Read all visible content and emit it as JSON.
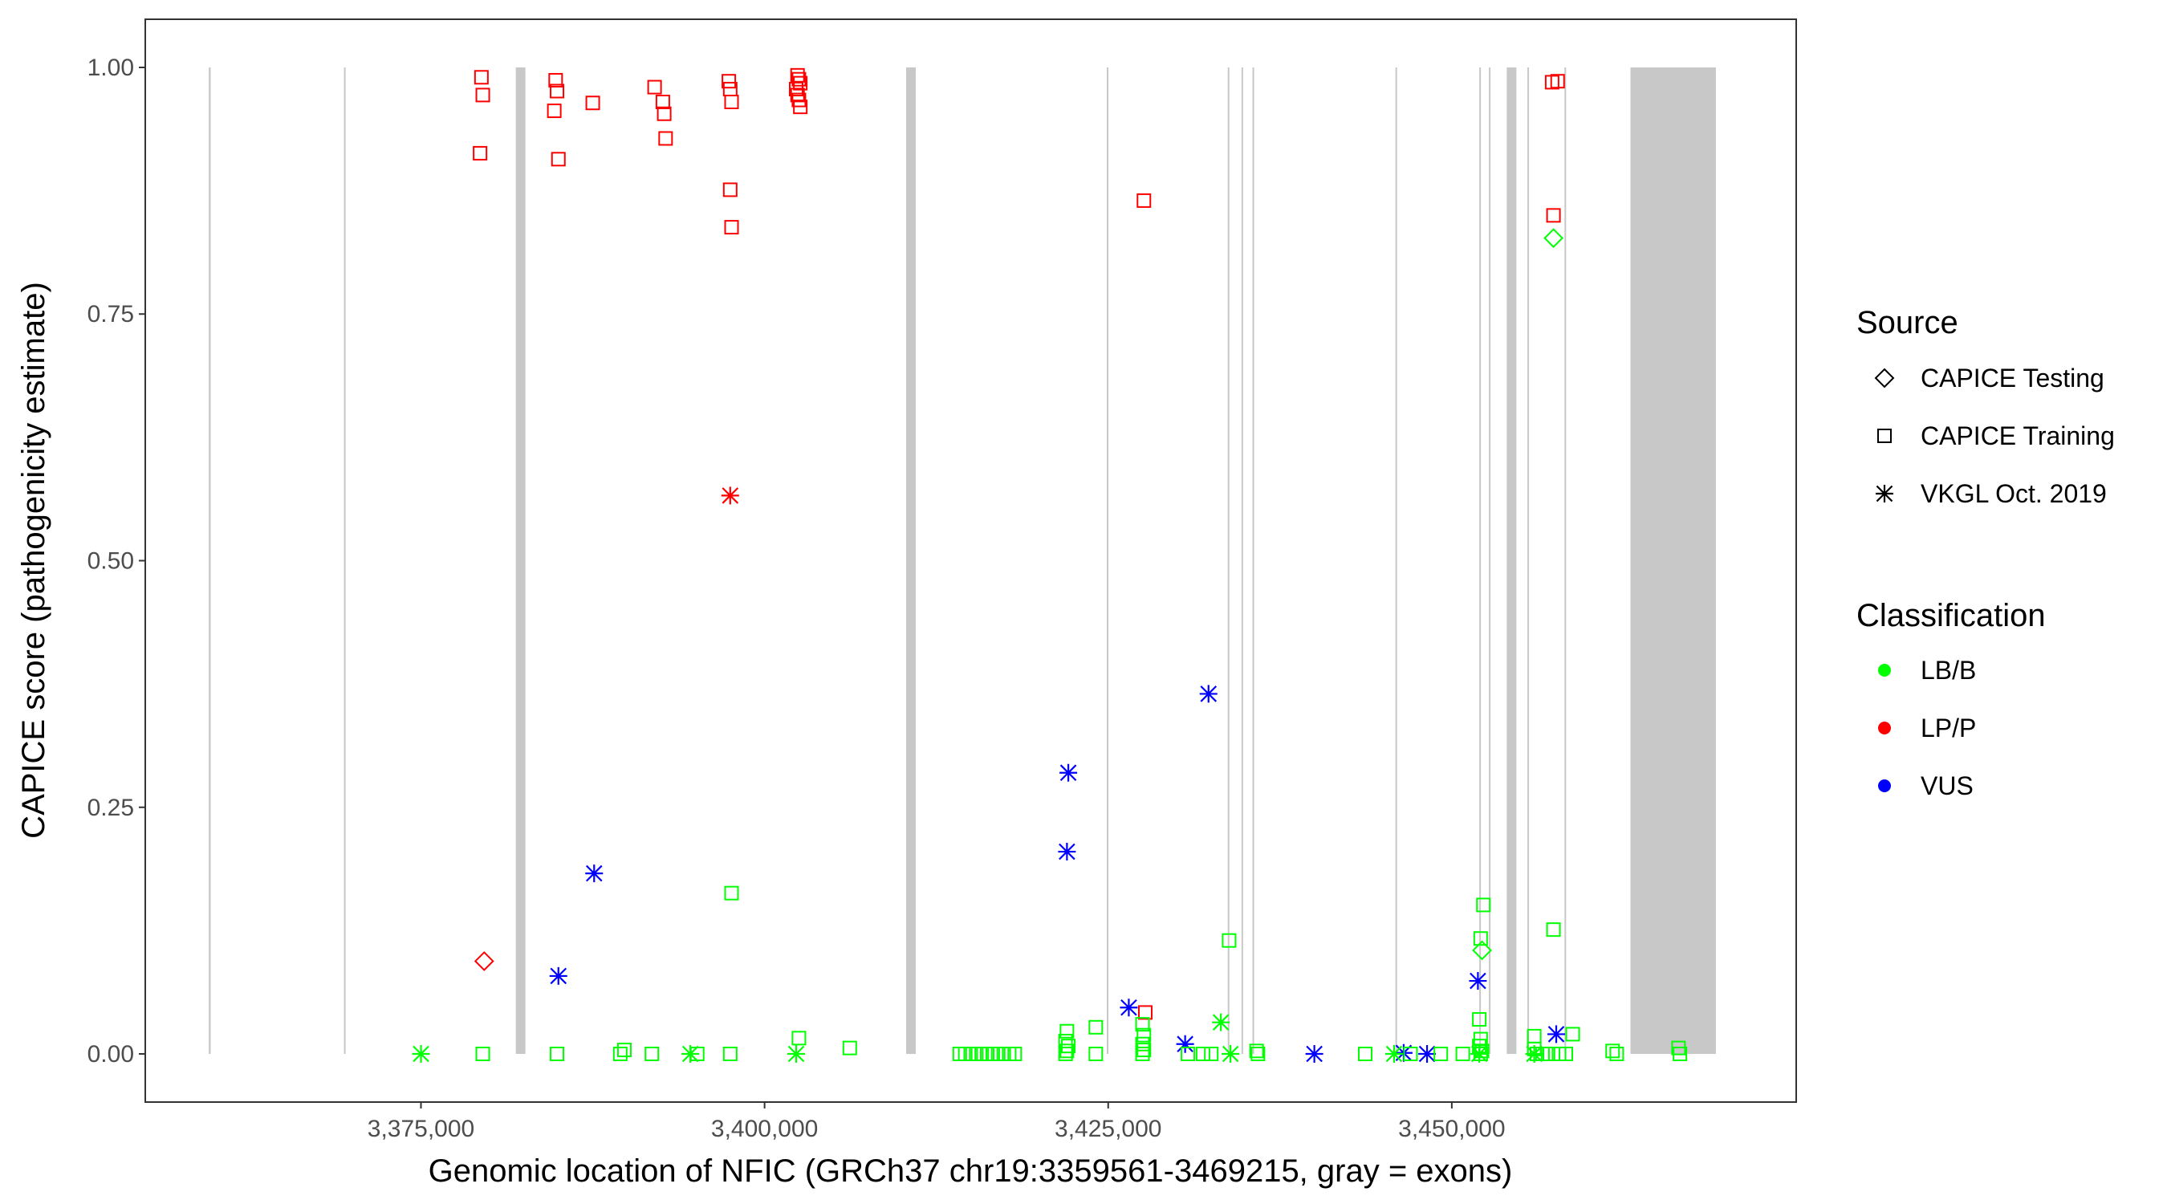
{
  "chart_data": {
    "type": "scatter",
    "title": "",
    "xlabel": "Genomic location of NFIC (GRCh37 chr19:3359561-3469215, gray = exons)",
    "ylabel": "CAPICE score (pathogenicity estimate)",
    "xlim": [
      3355000,
      3475000
    ],
    "ylim": [
      -0.048,
      1.048
    ],
    "x_ticks": [
      3375000,
      3400000,
      3425000,
      3450000
    ],
    "x_tick_labels": [
      "3,375,000",
      "3,400,000",
      "3,425,000",
      "3,450,000"
    ],
    "y_ticks": [
      0,
      0.25,
      0.5,
      0.75,
      1.0
    ],
    "y_tick_labels": [
      "0.00",
      "0.25",
      "0.50",
      "0.75",
      "1.00"
    ],
    "exons": [
      [
        3359561,
        3359700
      ],
      [
        3369400,
        3369500
      ],
      [
        3381900,
        3382600
      ],
      [
        3410300,
        3411000
      ],
      [
        3424900,
        3425000
      ],
      [
        3433700,
        3433800
      ],
      [
        3434700,
        3434800
      ],
      [
        3435500,
        3435600
      ],
      [
        3445900,
        3446000
      ],
      [
        3452000,
        3452100
      ],
      [
        3452700,
        3452800
      ],
      [
        3454000,
        3454700
      ],
      [
        3455500,
        3455600
      ],
      [
        3458200,
        3458300
      ],
      [
        3463000,
        3469215
      ]
    ],
    "legend": {
      "source_title": "Source",
      "classification_title": "Classification",
      "sources": [
        {
          "name": "CAPICE Testing",
          "shape": "diamond"
        },
        {
          "name": "CAPICE Training",
          "shape": "square"
        },
        {
          "name": "VKGL Oct. 2019",
          "shape": "asterisk"
        }
      ],
      "classes": [
        {
          "name": "LB/B",
          "color": "#00ff00"
        },
        {
          "name": "LP/P",
          "color": "#ff0000"
        },
        {
          "name": "VUS",
          "color": "#0000ff"
        }
      ]
    },
    "series": [
      {
        "source": "CAPICE Training",
        "classification": "LP/P",
        "points": [
          [
            3379400,
            0.99
          ],
          [
            3379500,
            0.972
          ],
          [
            3379300,
            0.913
          ],
          [
            3384800,
            0.987
          ],
          [
            3384900,
            0.976
          ],
          [
            3384700,
            0.956
          ],
          [
            3385000,
            0.907
          ],
          [
            3387500,
            0.964
          ],
          [
            3392000,
            0.98
          ],
          [
            3392600,
            0.965
          ],
          [
            3392700,
            0.953
          ],
          [
            3392800,
            0.928
          ],
          [
            3397400,
            0.986
          ],
          [
            3397500,
            0.978
          ],
          [
            3397600,
            0.965
          ],
          [
            3397500,
            0.876
          ],
          [
            3397600,
            0.838
          ],
          [
            3402400,
            0.992
          ],
          [
            3402500,
            0.988
          ],
          [
            3402600,
            0.984
          ],
          [
            3402300,
            0.978
          ],
          [
            3402400,
            0.972
          ],
          [
            3402500,
            0.967
          ],
          [
            3402600,
            0.96
          ],
          [
            3427600,
            0.865
          ],
          [
            3427700,
            0.042
          ],
          [
            3457300,
            0.985
          ],
          [
            3457700,
            0.986
          ],
          [
            3457400,
            0.85
          ]
        ]
      },
      {
        "source": "CAPICE Testing",
        "classification": "LP/P",
        "points": [
          [
            3379600,
            0.094
          ]
        ]
      },
      {
        "source": "VKGL Oct. 2019",
        "classification": "LP/P",
        "points": [
          [
            3397500,
            0.566
          ]
        ]
      },
      {
        "source": "VKGL Oct. 2019",
        "classification": "VUS",
        "points": [
          [
            3387600,
            0.183
          ],
          [
            3385000,
            0.079
          ],
          [
            3422100,
            0.285
          ],
          [
            3422000,
            0.205
          ],
          [
            3426500,
            0.047
          ],
          [
            3430600,
            0.01
          ],
          [
            3432300,
            0.365
          ],
          [
            3440000,
            0.0
          ],
          [
            3446500,
            0.001
          ],
          [
            3448200,
            0.0
          ],
          [
            3451900,
            0.074
          ],
          [
            3457600,
            0.02
          ]
        ]
      },
      {
        "source": "VKGL Oct. 2019",
        "classification": "LB/B",
        "points": [
          [
            3375000,
            0.0
          ],
          [
            3394600,
            0.0
          ],
          [
            3402300,
            0.0
          ],
          [
            3433200,
            0.032
          ],
          [
            3433900,
            0.0
          ],
          [
            3445800,
            0.0
          ],
          [
            3452000,
            0.0
          ],
          [
            3456000,
            0.0
          ]
        ]
      },
      {
        "source": "CAPICE Testing",
        "classification": "LB/B",
        "points": [
          [
            3457400,
            0.827
          ],
          [
            3452200,
            0.105
          ]
        ]
      },
      {
        "source": "CAPICE Training",
        "classification": "LB/B",
        "points": [
          [
            3379500,
            0.0
          ],
          [
            3384900,
            0.0
          ],
          [
            3389500,
            0.0
          ],
          [
            3389800,
            0.004
          ],
          [
            3391800,
            0.0
          ],
          [
            3395100,
            0.0
          ],
          [
            3397600,
            0.163
          ],
          [
            3397500,
            0.0
          ],
          [
            3402500,
            0.016
          ],
          [
            3406200,
            0.006
          ],
          [
            3414200,
            0.0
          ],
          [
            3414600,
            0.0
          ],
          [
            3415000,
            0.0
          ],
          [
            3415400,
            0.0
          ],
          [
            3415800,
            0.0
          ],
          [
            3416200,
            0.0
          ],
          [
            3416600,
            0.0
          ],
          [
            3417000,
            0.0
          ],
          [
            3417400,
            0.0
          ],
          [
            3417800,
            0.0
          ],
          [
            3418200,
            0.0
          ],
          [
            3422000,
            0.023
          ],
          [
            3421900,
            0.013
          ],
          [
            3422100,
            0.008
          ],
          [
            3422000,
            0.003
          ],
          [
            3421900,
            0.0
          ],
          [
            3424100,
            0.027
          ],
          [
            3424100,
            0.0
          ],
          [
            3427500,
            0.03
          ],
          [
            3427600,
            0.019
          ],
          [
            3427500,
            0.01
          ],
          [
            3427600,
            0.004
          ],
          [
            3427500,
            0.0
          ],
          [
            3430800,
            0.0
          ],
          [
            3431900,
            0.0
          ],
          [
            3432500,
            0.0
          ],
          [
            3433800,
            0.115
          ],
          [
            3435800,
            0.003
          ],
          [
            3435900,
            0.0
          ],
          [
            3443700,
            0.0
          ],
          [
            3447000,
            0.0
          ],
          [
            3449200,
            0.0
          ],
          [
            3450800,
            0.0
          ],
          [
            3452300,
            0.151
          ],
          [
            3452100,
            0.117
          ],
          [
            3452000,
            0.035
          ],
          [
            3452100,
            0.015
          ],
          [
            3452000,
            0.008
          ],
          [
            3452200,
            0.003
          ],
          [
            3452100,
            0.0
          ],
          [
            3456000,
            0.018
          ],
          [
            3456000,
            0.005
          ],
          [
            3456200,
            0.0
          ],
          [
            3456600,
            0.0
          ],
          [
            3457000,
            0.0
          ],
          [
            3457400,
            0.126
          ],
          [
            3457800,
            0.0
          ],
          [
            3458300,
            0.0
          ],
          [
            3458800,
            0.02
          ],
          [
            3461700,
            0.003
          ],
          [
            3462000,
            0.0
          ],
          [
            3466500,
            0.006
          ],
          [
            3466600,
            0.0
          ]
        ]
      }
    ]
  }
}
